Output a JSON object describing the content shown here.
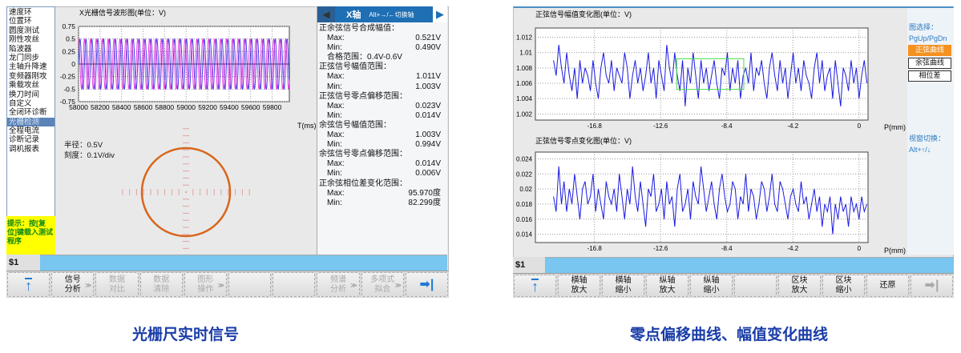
{
  "left_screen": {
    "menu": [
      "速度环",
      "位置环",
      "圆度测试",
      "刚性攻丝",
      "陷波器",
      "龙门同步",
      "主轴升降速",
      "变频器刚攻",
      "乘载攻丝",
      "换刀时间",
      "自定义",
      "全闭环诊断",
      "光栅检测",
      "全程电流",
      "诊断记录",
      "调机报表"
    ],
    "selected_menu": "光栅检测",
    "tip": "提示：按[复位]键载入测试程序",
    "wave_chart": {
      "title": "X光栅信号波形图(单位：V)",
      "xlabel": "T(ms)"
    },
    "lissajous": {
      "radius_label": "半径：0.5V",
      "scale_label": "刻度：0.1V/div",
      "radius": 0.5,
      "color": "#d8661c"
    },
    "axis_header": {
      "axis": "X轴",
      "hint": "Alt+→/←切换轴"
    },
    "stats": [
      {
        "title": "正余弦信号合成幅值：",
        "max": "0.521V",
        "min": "0.490V",
        "extra": "合格范围：0.4V-0.6V"
      },
      {
        "title": "正弦信号幅值范围：",
        "max": "1.011V",
        "min": "1.003V"
      },
      {
        "title": "正弦信号零点偏移范围：",
        "max": "0.023V",
        "min": "0.014V"
      },
      {
        "title": "余弦信号幅值范围：",
        "max": "1.003V",
        "min": "0.994V"
      },
      {
        "title": "余弦信号零点偏移范围：",
        "max": "0.014V",
        "min": "0.006V"
      },
      {
        "title": "正余弦相位差变化范围：",
        "max": "95.970度",
        "min": "82.299度"
      }
    ],
    "max_label": "Max:",
    "min_label": "Min:",
    "cmd_prompt": "$1",
    "toolbar": [
      {
        "label": "",
        "icon": "up-arrow-icon"
      },
      {
        "label": "信号\n分析",
        "more": true
      },
      {
        "label": "数据\n对比",
        "disabled": true
      },
      {
        "label": "数据\n清除",
        "disabled": true
      },
      {
        "label": "图形\n操作",
        "disabled": true,
        "more": true
      },
      {
        "label": ""
      },
      {
        "label": ""
      },
      {
        "label": "频谱\n分析",
        "disabled": true,
        "more": true
      },
      {
        "label": "多项式\n拟合",
        "disabled": true,
        "more": true
      },
      {
        "label": "",
        "icon": "next-arrow-icon"
      }
    ],
    "caption": "光栅尺实时信号"
  },
  "right_screen": {
    "side": {
      "select_label": "图选择：",
      "select_keys": "PgUp/PgDn",
      "buttons": [
        "正弦曲线",
        "余弦曲线",
        "相位差"
      ],
      "active": 0,
      "switch_label": "视窗切换：",
      "switch_keys": "Alt+↑/↓"
    },
    "cmd_prompt": "$1",
    "toolbar": [
      {
        "label": "",
        "icon": "up-arrow-icon"
      },
      {
        "label": "横轴\n放大"
      },
      {
        "label": "横轴\n缩小"
      },
      {
        "label": "纵轴\n放大"
      },
      {
        "label": "纵轴\n缩小"
      },
      {
        "label": ""
      },
      {
        "label": "区块\n放大"
      },
      {
        "label": "区块\n缩小"
      },
      {
        "label": "还原"
      },
      {
        "label": "",
        "icon": "next-arrow-icon",
        "disabled": true
      }
    ],
    "caption": "零点偏移曲线、幅值变化曲线"
  },
  "chart_data": [
    {
      "type": "line",
      "title": "X光栅信号波形图(单位：V)",
      "xlabel": "T(ms)",
      "ylabel": "",
      "xlim": [
        58000,
        59960
      ],
      "ylim": [
        -0.75,
        0.75
      ],
      "xticks": [
        58000,
        58200,
        58400,
        58600,
        58800,
        59000,
        59200,
        59400,
        59600,
        59800
      ],
      "yticks": [
        0.75,
        0.5,
        0.25,
        0,
        -0.25,
        -0.5,
        -0.75
      ],
      "grid": true,
      "series": [
        {
          "kind": "sine",
          "amplitude": 0.5,
          "period_ms": 55,
          "phase_deg": 0,
          "color": "#2222dd"
        },
        {
          "kind": "cosine",
          "amplitude": 0.5,
          "period_ms": 55,
          "phase_deg": 90,
          "color": "#dd22dd"
        }
      ]
    },
    {
      "type": "line",
      "title": "正弦信号幅值变化图(单位：V)",
      "xlabel": "P(mm)",
      "xlim": [
        -20.55,
        0.57
      ],
      "ylim": [
        1.0012,
        1.0132
      ],
      "xrange": [
        -19.4,
        0.5
      ],
      "xticks": [
        -16.8,
        -12.6,
        -8.4,
        -4.2,
        0
      ],
      "yticks": [
        1.012,
        1.01,
        1.008,
        1.006,
        1.004,
        1.002
      ],
      "grid": true,
      "color": "#1a1ae0",
      "selection": {
        "x": [
          -11.58,
          -7.32
        ],
        "y": [
          1.0052,
          1.0092
        ],
        "color": "#44dd44"
      },
      "values": [
        1.009,
        1.007,
        1.011,
        1.008,
        1.006,
        1.01,
        1.007,
        1.005,
        1.008,
        1.004,
        1.009,
        1.006,
        1.008,
        1.007,
        1.005,
        1.009,
        1.006,
        1.004,
        1.008,
        1.01,
        1.007,
        1.006,
        1.009,
        1.005,
        1.008,
        1.007,
        1.006,
        1.01,
        1.008,
        1.004,
        1.007,
        1.009,
        1.006,
        1.008,
        1.005,
        1.007,
        1.01,
        1.006,
        1.008,
        1.004,
        1.009,
        1.007,
        1.005,
        1.011,
        1.008,
        1.006,
        1.01,
        1.007,
        1.005,
        1.009,
        1.003,
        1.008,
        1.006,
        1.01,
        1.007,
        1.004,
        1.009,
        1.006,
        1.008,
        1.005,
        1.007,
        1.009,
        1.006,
        1.004,
        1.008,
        1.007,
        1.01,
        1.005,
        1.008,
        1.006,
        1.009,
        1.004,
        1.007,
        1.008,
        1.006,
        1.01,
        1.005,
        1.008,
        1.007,
        1.009,
        1.006,
        1.004,
        1.008,
        1.01,
        1.007,
        1.005,
        1.009,
        1.006,
        1.008,
        1.004,
        1.007,
        1.01,
        1.006,
        1.008,
        1.005,
        1.009,
        1.007,
        1.006,
        1.004,
        1.008,
        1.01,
        1.006,
        1.009,
        1.005,
        1.007,
        1.008,
        1.004,
        1.009,
        1.006,
        1.003,
        1.008,
        1.007,
        1.005,
        1.009,
        1.006,
        1.008,
        1.004,
        1.007,
        1.009,
        1.006
      ]
    },
    {
      "type": "line",
      "title": "正弦信号零点变化图(单位：V)",
      "xlabel": "P(mm)",
      "xlim": [
        -20.55,
        0.57
      ],
      "ylim": [
        0.0129,
        0.0249
      ],
      "xrange": [
        -19.4,
        0.5
      ],
      "xticks": [
        -16.8,
        -12.6,
        -8.4,
        -4.2,
        0
      ],
      "yticks": [
        0.024,
        0.022,
        0.02,
        0.018,
        0.016,
        0.014
      ],
      "grid": true,
      "color": "#1a1ae0",
      "values": [
        0.019,
        0.017,
        0.023,
        0.018,
        0.021,
        0.017,
        0.02,
        0.018,
        0.022,
        0.019,
        0.016,
        0.02,
        0.021,
        0.018,
        0.019,
        0.022,
        0.017,
        0.02,
        0.018,
        0.016,
        0.021,
        0.019,
        0.018,
        0.02,
        0.017,
        0.022,
        0.019,
        0.016,
        0.02,
        0.018,
        0.023,
        0.019,
        0.017,
        0.021,
        0.018,
        0.015,
        0.02,
        0.019,
        0.022,
        0.017,
        0.018,
        0.02,
        0.016,
        0.021,
        0.018,
        0.019,
        0.015,
        0.02,
        0.022,
        0.017,
        0.018,
        0.02,
        0.016,
        0.021,
        0.019,
        0.018,
        0.023,
        0.02,
        0.017,
        0.019,
        0.021,
        0.018,
        0.016,
        0.02,
        0.022,
        0.019,
        0.017,
        0.018,
        0.021,
        0.02,
        0.016,
        0.019,
        0.018,
        0.022,
        0.017,
        0.02,
        0.019,
        0.016,
        0.018,
        0.021,
        0.02,
        0.017,
        0.019,
        0.022,
        0.018,
        0.017,
        0.021,
        0.02,
        0.018,
        0.016,
        0.019,
        0.02,
        0.018,
        0.017,
        0.021,
        0.018,
        0.019,
        0.016,
        0.018,
        0.02,
        0.017,
        0.019,
        0.015,
        0.018,
        0.017,
        0.019,
        0.014,
        0.018,
        0.016,
        0.019,
        0.017,
        0.018,
        0.015,
        0.019,
        0.017,
        0.018,
        0.016,
        0.019,
        0.017,
        0.018
      ]
    }
  ]
}
